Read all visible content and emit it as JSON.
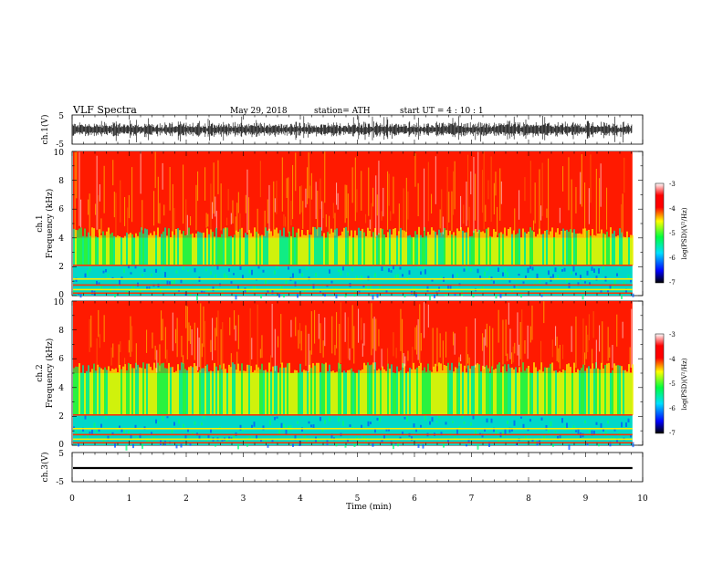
{
  "header": {
    "title": "VLF  Spectra",
    "date": "May 29, 2018",
    "station": "station= ATH",
    "start": "start  UT  =   4  : 10 : 1"
  },
  "chart_data": [
    {
      "type": "line",
      "name": "ch1-waveform",
      "ylabel": "ch.1(V)",
      "ylim": [
        -5,
        5
      ],
      "yticks": [
        "5",
        "-5"
      ],
      "xlim": [
        0,
        10
      ],
      "amplitude_typical": 2,
      "amplitude_max": 5,
      "data_end_min": 9.82
    },
    {
      "type": "heatmap",
      "name": "ch1-spectrogram",
      "ylabel": "Frequency (kHz)",
      "channel_label": "ch.1",
      "ylim": [
        0,
        10
      ],
      "yticks": [
        "0",
        "2",
        "4",
        "6",
        "8",
        "10"
      ],
      "xlim": [
        0,
        10
      ],
      "data_end_min": 9.82,
      "low_band_kHz": [
        0,
        2.1
      ],
      "mid_band_kHz": [
        2.1,
        4.0
      ],
      "colorbar": {
        "label": "log(PSD)(V²/Hz)",
        "ticks": [
          "-3",
          "-4",
          "-5",
          "-6",
          "-7"
        ],
        "range": [
          -7,
          -3
        ]
      }
    },
    {
      "type": "heatmap",
      "name": "ch2-spectrogram",
      "ylabel": "Frequency (kHz)",
      "channel_label": "ch.2",
      "ylim": [
        0,
        10
      ],
      "yticks": [
        "0",
        "2",
        "4",
        "6",
        "8",
        "10"
      ],
      "xlim": [
        0,
        10
      ],
      "data_end_min": 9.82,
      "low_band_kHz": [
        0,
        2.1
      ],
      "mid_band_kHz": [
        2.1,
        5.0
      ],
      "colorbar": {
        "label": "log(PSD)(V²/Hz)",
        "ticks": [
          "-3",
          "-4",
          "-5",
          "-6",
          "-7"
        ],
        "range": [
          -7,
          -3
        ]
      }
    },
    {
      "type": "line",
      "name": "ch3-waveform",
      "ylabel": "ch.3(V)",
      "ylim": [
        -5,
        5
      ],
      "yticks": [
        "5",
        "-5"
      ],
      "xlim": [
        0,
        10
      ],
      "constant_level_V": -0.3,
      "data_end_min": 9.82
    }
  ],
  "xaxis": {
    "label": "Time  (min)",
    "ticks": [
      "0",
      "1",
      "2",
      "3",
      "4",
      "5",
      "6",
      "7",
      "8",
      "9",
      "10"
    ]
  },
  "colors": {
    "colorbar": [
      "#000000",
      "#0000ff",
      "#00e0ff",
      "#00ff40",
      "#ffff00",
      "#ff0000",
      "#ffffff"
    ]
  }
}
